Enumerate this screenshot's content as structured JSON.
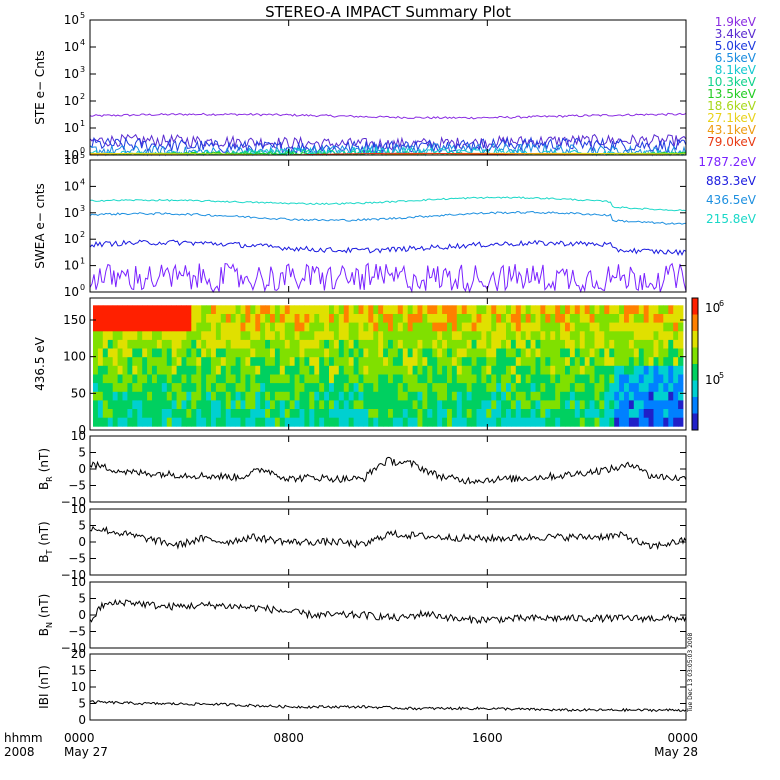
{
  "title": "STEREO-A IMPACT Summary Plot",
  "time_axis": {
    "corner_labels": [
      "hhmm",
      "2008"
    ],
    "ticks": [
      {
        "hhmm": "0000",
        "date": "May 27",
        "hours": 0
      },
      {
        "hhmm": "0800",
        "date": "",
        "hours": 8
      },
      {
        "hhmm": "1600",
        "date": "",
        "hours": 16
      },
      {
        "hhmm": "0000",
        "date": "May 28",
        "hours": 24
      }
    ],
    "range_hours": [
      0,
      24
    ]
  },
  "side_stamp": "Tue Dec 13 03:05:03 2008",
  "colors": {
    "background": "#ffffff",
    "axes": "#000000",
    "trace": "#000000"
  },
  "chart_data": [
    {
      "id": "ste",
      "type": "line",
      "ylabel": "STE e− Cnts",
      "yscale": "log",
      "ylim": [
        1,
        100000
      ],
      "yticks": [
        {
          "base": "10",
          "exp": "0"
        },
        {
          "base": "10",
          "exp": "1"
        },
        {
          "base": "10",
          "exp": "2"
        },
        {
          "base": "10",
          "exp": "3"
        },
        {
          "base": "10",
          "exp": "4"
        },
        {
          "base": "10",
          "exp": "5"
        }
      ],
      "series": [
        {
          "name": "1.9keV",
          "color": "#8a2be2",
          "level": 28,
          "noise": 0.04
        },
        {
          "name": "3.4keV",
          "color": "#5a2bd0",
          "level": 3.0,
          "noise": 0.22
        },
        {
          "name": "5.0keV",
          "color": "#1f3adf",
          "level": 2.2,
          "noise": 0.24
        },
        {
          "name": "6.5keV",
          "color": "#1a8be0",
          "level": 1.5,
          "noise": 0.2
        },
        {
          "name": "8.1keV",
          "color": "#13c8d0",
          "level": 1.2,
          "noise": 0.15
        },
        {
          "name": "10.3keV",
          "color": "#10d28c",
          "level": 1.05,
          "noise": 0.1
        },
        {
          "name": "13.5keV",
          "color": "#22cc22",
          "level": 1.0,
          "noise": 0.05
        },
        {
          "name": "18.6keV",
          "color": "#a8d81a",
          "level": 1.0,
          "noise": 0.0
        },
        {
          "name": "27.1keV",
          "color": "#e8d21a",
          "level": 1.0,
          "noise": 0.0
        },
        {
          "name": "43.1keV",
          "color": "#ee9a10",
          "level": 1.0,
          "noise": 0.0
        },
        {
          "name": "79.0keV",
          "color": "#e83a14",
          "level": 1.0,
          "noise": 0.0
        }
      ]
    },
    {
      "id": "swea",
      "type": "line",
      "ylabel": "SWEA e− cnts",
      "yscale": "log",
      "ylim": [
        1,
        100000
      ],
      "yticks": [
        {
          "base": "10",
          "exp": "0"
        },
        {
          "base": "10",
          "exp": "1"
        },
        {
          "base": "10",
          "exp": "2"
        },
        {
          "base": "10",
          "exp": "3"
        },
        {
          "base": "10",
          "exp": "4"
        },
        {
          "base": "10",
          "exp": "5"
        }
      ],
      "series": [
        {
          "name": "1787.2eV",
          "color": "#7a22ff",
          "level": 3,
          "noise": 0.5
        },
        {
          "name": "883.3eV",
          "color": "#1a1adf",
          "level": 55,
          "noise": 0.1
        },
        {
          "name": "436.5eV",
          "color": "#1e90e0",
          "level": 750,
          "noise": 0.04
        },
        {
          "name": "215.8eV",
          "color": "#1ad8c8",
          "level": 2800,
          "noise": 0.03
        }
      ]
    },
    {
      "id": "pad",
      "type": "heatmap",
      "ylabel": "436.5 eV",
      "ylim": [
        0,
        180
      ],
      "yticks": [
        {
          "value": 0,
          "label": "0"
        },
        {
          "value": 50,
          "label": "50"
        },
        {
          "value": 100,
          "label": "100"
        },
        {
          "value": 150,
          "label": "150"
        }
      ],
      "colorbar": {
        "scale": "log",
        "ticks": [
          {
            "base": "10",
            "exp": "6"
          },
          {
            "base": "10",
            "exp": "5"
          }
        ],
        "colors": [
          "#2020c8",
          "#0080ff",
          "#00d0d0",
          "#00d060",
          "#80e000",
          "#e0e000",
          "#ff8000",
          "#ff2000"
        ]
      }
    },
    {
      "id": "br",
      "type": "line",
      "ylabel": "B",
      "ylabel_sub": "R",
      "ylabel_unit": "(nT)",
      "ylim": [
        -10,
        10
      ],
      "yticks": [
        {
          "value": -10,
          "label": "−10"
        },
        {
          "value": -5,
          "label": "−5"
        },
        {
          "value": 0,
          "label": "0"
        },
        {
          "value": 5,
          "label": "5"
        },
        {
          "value": 10,
          "label": "10"
        }
      ],
      "keypoints": [
        [
          0,
          1.5
        ],
        [
          1.5,
          -1
        ],
        [
          3,
          -1.5
        ],
        [
          4.5,
          -2
        ],
        [
          6,
          -2.5
        ],
        [
          7,
          0
        ],
        [
          8,
          -3
        ],
        [
          9,
          -2.5
        ],
        [
          10,
          -3
        ],
        [
          11,
          -3
        ],
        [
          11.6,
          1
        ],
        [
          12,
          2.5
        ],
        [
          13,
          1.5
        ],
        [
          14,
          -2
        ],
        [
          15,
          -3.5
        ],
        [
          17,
          -3
        ],
        [
          19,
          -2
        ],
        [
          21,
          0
        ],
        [
          22,
          1.5
        ],
        [
          22.5,
          -2
        ],
        [
          24,
          -3
        ]
      ]
    },
    {
      "id": "bt",
      "type": "line",
      "ylabel": "B",
      "ylabel_sub": "T",
      "ylabel_unit": "(nT)",
      "ylim": [
        -10,
        10
      ],
      "yticks": [
        {
          "value": -10,
          "label": "−10"
        },
        {
          "value": -5,
          "label": "−5"
        },
        {
          "value": 0,
          "label": "0"
        },
        {
          "value": 5,
          "label": "5"
        },
        {
          "value": 10,
          "label": "10"
        }
      ],
      "keypoints": [
        [
          0,
          4.5
        ],
        [
          1,
          3
        ],
        [
          2,
          1.5
        ],
        [
          3.5,
          -1
        ],
        [
          4.5,
          1
        ],
        [
          5.5,
          0
        ],
        [
          6.5,
          1.5
        ],
        [
          8,
          0
        ],
        [
          10,
          0
        ],
        [
          11,
          -1
        ],
        [
          12,
          2.5
        ],
        [
          14,
          1.5
        ],
        [
          16,
          1
        ],
        [
          18,
          1.5
        ],
        [
          20,
          1.5
        ],
        [
          21.5,
          2
        ],
        [
          22.5,
          -1.5
        ],
        [
          24,
          0.5
        ]
      ]
    },
    {
      "id": "bn",
      "type": "line",
      "ylabel": "B",
      "ylabel_sub": "N",
      "ylabel_unit": "(nT)",
      "ylim": [
        -10,
        10
      ],
      "yticks": [
        {
          "value": -10,
          "label": "−10"
        },
        {
          "value": -5,
          "label": "−5"
        },
        {
          "value": 0,
          "label": "0"
        },
        {
          "value": 5,
          "label": "5"
        },
        {
          "value": 10,
          "label": "10"
        }
      ],
      "keypoints": [
        [
          0,
          -2
        ],
        [
          0.5,
          3
        ],
        [
          1.5,
          4
        ],
        [
          3,
          2.5
        ],
        [
          5,
          3
        ],
        [
          7,
          2
        ],
        [
          9,
          0
        ],
        [
          11,
          0
        ],
        [
          12.5,
          -1
        ],
        [
          13.5,
          0.5
        ],
        [
          15,
          -1.5
        ],
        [
          18,
          -1
        ],
        [
          20,
          -1
        ],
        [
          22,
          -1
        ],
        [
          24,
          -1
        ]
      ]
    },
    {
      "id": "bmag",
      "type": "line",
      "ylabel": "IBI",
      "ylabel_unit": "(nT)",
      "ylim": [
        0,
        20
      ],
      "yticks": [
        {
          "value": 0,
          "label": "0"
        },
        {
          "value": 5,
          "label": "5"
        },
        {
          "value": 10,
          "label": "10"
        },
        {
          "value": 15,
          "label": "15"
        },
        {
          "value": 20,
          "label": "20"
        }
      ],
      "keypoints": [
        [
          0,
          5.5
        ],
        [
          2,
          5
        ],
        [
          5,
          4.8
        ],
        [
          8,
          4
        ],
        [
          11,
          4
        ],
        [
          13,
          3.5
        ],
        [
          16,
          3.5
        ],
        [
          19,
          3
        ],
        [
          22,
          3
        ],
        [
          24,
          3
        ]
      ]
    }
  ]
}
